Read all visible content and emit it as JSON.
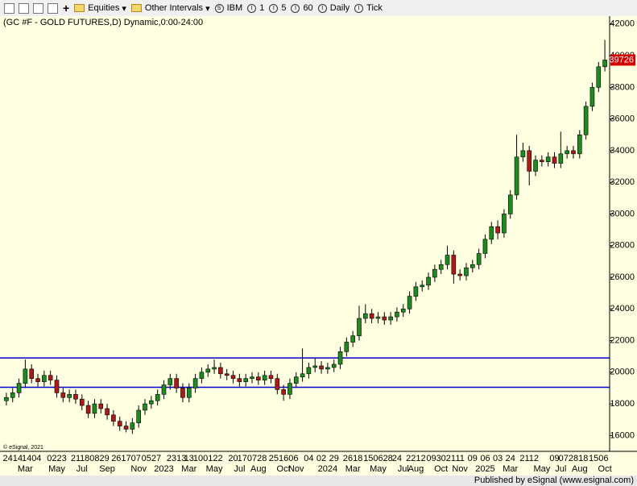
{
  "toolbar": {
    "items": [
      "Equities",
      "Other Intervals",
      "IBM",
      "1",
      "5",
      "60",
      "Daily",
      "Tick"
    ]
  },
  "footer": {
    "copyright": "© eSignal, 2021",
    "published": "Published by eSignal (www.esignal.com)"
  },
  "chart_data": {
    "type": "candlestick",
    "title": "(GC #F - GOLD FUTURES,D) Dynamic,0:00-24:00",
    "ylim": [
      15000,
      42500
    ],
    "yticks": [
      16000,
      18000,
      20000,
      22000,
      24000,
      26000,
      28000,
      30000,
      32000,
      34000,
      36000,
      38000,
      40000,
      42000
    ],
    "up_color": "#1f8a1f",
    "down_color": "#b01818",
    "hlines": [
      20900,
      19050
    ],
    "hline_color": "#0000cc",
    "last_price_color": "#d40000",
    "day_labels": [
      null,
      "2414",
      null,
      null,
      "1404",
      null,
      null,
      null,
      "0223",
      null,
      null,
      "21",
      null,
      null,
      "180829",
      null,
      null,
      null,
      null,
      "261707",
      null,
      null,
      null,
      "0527",
      null,
      null,
      null,
      "2313",
      null,
      "13",
      null,
      null,
      "100122",
      null,
      null,
      null,
      "20",
      null,
      null,
      "170728",
      null,
      null,
      null,
      null,
      "251606",
      null,
      null,
      null,
      "04",
      null,
      "02",
      null,
      "29",
      null,
      null,
      "2618",
      null,
      null,
      null,
      "150628",
      null,
      null,
      "24",
      null,
      null,
      "2212",
      null,
      null,
      null,
      "093021",
      null,
      null,
      "11",
      null,
      "09",
      null,
      "06",
      null,
      "03",
      null,
      "24",
      null,
      null,
      "2112",
      null,
      null,
      null,
      "09",
      null,
      null,
      "072818",
      null,
      null,
      null,
      "1506",
      null
    ],
    "month_labels": [
      null,
      null,
      null,
      "Mar",
      null,
      null,
      null,
      null,
      "May",
      null,
      null,
      null,
      "Jul",
      null,
      null,
      null,
      "Sep",
      null,
      null,
      null,
      null,
      "Nov",
      null,
      null,
      null,
      "2023",
      null,
      null,
      null,
      "Mar",
      null,
      null,
      null,
      "May",
      null,
      null,
      null,
      "Jul",
      null,
      null,
      "Aug",
      null,
      null,
      null,
      "Oct",
      null,
      "Nov",
      null,
      null,
      null,
      null,
      "2024",
      null,
      null,
      null,
      "Mar",
      null,
      null,
      null,
      "May",
      null,
      null,
      null,
      "Jul",
      null,
      "Aug",
      null,
      null,
      null,
      "Oct",
      null,
      null,
      "Nov",
      null,
      null,
      null,
      "2025",
      null,
      null,
      null,
      "Mar",
      null,
      null,
      null,
      null,
      "May",
      null,
      null,
      "Jul",
      null,
      null,
      "Aug",
      null,
      null,
      null,
      "Oct"
    ],
    "open": [
      18200,
      18400,
      18700,
      19300,
      20200,
      19600,
      19400,
      19800,
      19500,
      18700,
      18400,
      18600,
      18300,
      17900,
      17400,
      18000,
      17700,
      17300,
      16900,
      16600,
      16400,
      16800,
      17600,
      18000,
      18200,
      18600,
      19200,
      19600,
      19000,
      18400,
      19000,
      19600,
      20000,
      20200,
      20300,
      19900,
      19800,
      19600,
      19400,
      19600,
      19700,
      19500,
      19800,
      19600,
      18900,
      18600,
      19300,
      19700,
      19900,
      20300,
      20400,
      20200,
      20300,
      20500,
      21300,
      21900,
      22300,
      23400,
      23700,
      23400,
      23500,
      23300,
      23500,
      23800,
      24000,
      24800,
      25400,
      25500,
      26000,
      26500,
      26800,
      27400,
      26200,
      26100,
      26600,
      26800,
      27500,
      28400,
      29200,
      28800,
      30000,
      31200,
      33600,
      34000,
      32700,
      33400,
      33300,
      33600,
      33200,
      33800,
      34000,
      33800,
      35000,
      36800,
      38000,
      39300
    ],
    "high": [
      18700,
      19000,
      19600,
      20800,
      20500,
      19900,
      20100,
      20100,
      19800,
      19000,
      18900,
      18900,
      18600,
      18200,
      18300,
      18300,
      18000,
      17600,
      17200,
      16900,
      17100,
      17900,
      18300,
      18500,
      18900,
      19500,
      19900,
      19900,
      19300,
      19300,
      19900,
      20300,
      20500,
      20800,
      20600,
      20200,
      20100,
      19900,
      19900,
      20000,
      20000,
      20100,
      20100,
      19900,
      19200,
      19600,
      20000,
      21500,
      20600,
      20900,
      20700,
      20600,
      20800,
      21600,
      22200,
      22600,
      24200,
      24300,
      24000,
      23800,
      23800,
      23800,
      24100,
      24300,
      25100,
      25700,
      25800,
      26300,
      26800,
      27100,
      28000,
      27700,
      26500,
      26900,
      27100,
      27800,
      28700,
      29500,
      29600,
      30300,
      31500,
      35000,
      34500,
      34300,
      33700,
      33700,
      33900,
      33900,
      35200,
      34300,
      34300,
      35300,
      37100,
      38300,
      39600,
      41000
    ],
    "low": [
      17900,
      18100,
      18400,
      19000,
      19300,
      19100,
      19100,
      19200,
      18400,
      18100,
      18100,
      18000,
      17600,
      17100,
      17100,
      17400,
      17000,
      16600,
      16300,
      16200,
      16100,
      16500,
      17300,
      17700,
      17900,
      18300,
      18900,
      18700,
      18100,
      18100,
      18700,
      19300,
      19700,
      19900,
      19600,
      19500,
      19300,
      19100,
      19100,
      19300,
      19200,
      19200,
      19300,
      18600,
      18200,
      18300,
      19000,
      19400,
      19600,
      20000,
      19900,
      19900,
      20000,
      20200,
      21000,
      21600,
      22000,
      23100,
      23100,
      23100,
      23000,
      23000,
      23200,
      23500,
      23700,
      24500,
      25100,
      25200,
      25700,
      26200,
      26500,
      25600,
      25800,
      25800,
      26300,
      26500,
      27200,
      28100,
      28400,
      28500,
      29700,
      30900,
      33300,
      31800,
      32400,
      33000,
      33000,
      32900,
      32900,
      33500,
      33500,
      33500,
      34700,
      36500,
      37700,
      39000
    ],
    "close": [
      18400,
      18700,
      19300,
      20200,
      19600,
      19400,
      19800,
      19500,
      18700,
      18400,
      18600,
      18300,
      17900,
      17400,
      18000,
      17700,
      17300,
      16900,
      16600,
      16400,
      16800,
      17600,
      18000,
      18200,
      18600,
      19200,
      19600,
      19000,
      18400,
      19000,
      19600,
      20000,
      20200,
      20300,
      19900,
      19800,
      19600,
      19400,
      19600,
      19700,
      19500,
      19800,
      19600,
      18900,
      18600,
      19300,
      19700,
      19900,
      20300,
      20400,
      20200,
      20300,
      20500,
      21300,
      21900,
      22300,
      23400,
      23700,
      23400,
      23500,
      23300,
      23500,
      23800,
      24000,
      24800,
      25400,
      25500,
      26000,
      26500,
      26800,
      27400,
      26200,
      26100,
      26600,
      26800,
      27500,
      28400,
      29200,
      28800,
      30000,
      31200,
      33600,
      34000,
      32700,
      33400,
      33300,
      33600,
      33200,
      33800,
      34000,
      33800,
      35000,
      36800,
      38000,
      39300,
      39726
    ]
  }
}
